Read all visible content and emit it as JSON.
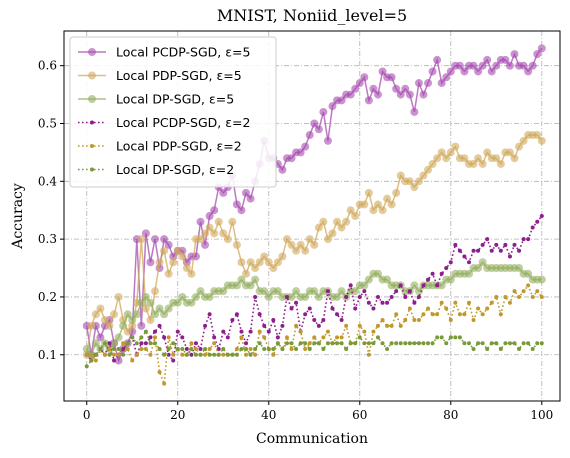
{
  "chart_data": {
    "type": "line",
    "title": "MNIST, Noniid_level=5",
    "xlabel": "Communication",
    "ylabel": "Accuracy",
    "xlim": [
      -5,
      104
    ],
    "ylim": [
      0.02,
      0.66
    ],
    "xticks": [
      0,
      20,
      40,
      60,
      80,
      100
    ],
    "yticks": [
      0.1,
      0.2,
      0.3,
      0.4,
      0.5,
      0.6
    ],
    "xtick_labels": [
      "0",
      "20",
      "40",
      "60",
      "80",
      "100"
    ],
    "ytick_labels": [
      "0.1",
      "0.2",
      "0.3",
      "0.4",
      "0.5",
      "0.6"
    ],
    "grid": true,
    "legend_position": "top-left",
    "series": [
      {
        "name": "Local PCDP-SGD, ε=5",
        "color": "#a64bb0",
        "style": "solid",
        "marker": "circle",
        "values": [
          0.15,
          0.1,
          0.15,
          0.13,
          0.15,
          0.16,
          0.12,
          0.09,
          0.11,
          0.12,
          0.14,
          0.3,
          0.15,
          0.31,
          0.26,
          0.3,
          0.25,
          0.3,
          0.29,
          0.27,
          0.28,
          0.28,
          0.26,
          0.27,
          0.27,
          0.33,
          0.29,
          0.34,
          0.35,
          0.39,
          0.38,
          0.39,
          0.41,
          0.36,
          0.35,
          0.38,
          0.37,
          0.4,
          0.43,
          0.47,
          0.44,
          0.44,
          0.43,
          0.42,
          0.44,
          0.44,
          0.45,
          0.45,
          0.46,
          0.48,
          0.5,
          0.49,
          0.52,
          0.47,
          0.53,
          0.54,
          0.54,
          0.55,
          0.55,
          0.56,
          0.57,
          0.58,
          0.54,
          0.56,
          0.55,
          0.59,
          0.58,
          0.58,
          0.56,
          0.55,
          0.56,
          0.55,
          0.52,
          0.57,
          0.55,
          0.57,
          0.59,
          0.61,
          0.57,
          0.58,
          0.59,
          0.6,
          0.6,
          0.59,
          0.6,
          0.6,
          0.59,
          0.6,
          0.61,
          0.59,
          0.6,
          0.61,
          0.61,
          0.6,
          0.62,
          0.6,
          0.6,
          0.59,
          0.6,
          0.62,
          0.63
        ]
      },
      {
        "name": "Local PDP-SGD, ε=5",
        "color": "#d1a85a",
        "style": "solid",
        "marker": "circle",
        "values": [
          0.1,
          0.15,
          0.17,
          0.18,
          0.16,
          0.15,
          0.17,
          0.2,
          0.16,
          0.14,
          0.15,
          0.19,
          0.3,
          0.18,
          0.16,
          0.21,
          0.26,
          0.28,
          0.24,
          0.26,
          0.28,
          0.27,
          0.25,
          0.24,
          0.3,
          0.3,
          0.31,
          0.32,
          0.31,
          0.33,
          0.31,
          0.3,
          0.33,
          0.29,
          0.26,
          0.24,
          0.26,
          0.25,
          0.26,
          0.27,
          0.26,
          0.25,
          0.26,
          0.27,
          0.3,
          0.29,
          0.28,
          0.29,
          0.28,
          0.3,
          0.29,
          0.32,
          0.33,
          0.3,
          0.31,
          0.33,
          0.32,
          0.33,
          0.35,
          0.34,
          0.36,
          0.36,
          0.38,
          0.35,
          0.36,
          0.35,
          0.37,
          0.36,
          0.38,
          0.41,
          0.4,
          0.4,
          0.39,
          0.4,
          0.41,
          0.42,
          0.43,
          0.44,
          0.45,
          0.44,
          0.45,
          0.46,
          0.44,
          0.44,
          0.43,
          0.43,
          0.44,
          0.43,
          0.45,
          0.44,
          0.44,
          0.43,
          0.45,
          0.45,
          0.44,
          0.46,
          0.47,
          0.48,
          0.48,
          0.48,
          0.47
        ]
      },
      {
        "name": "Local DP-SGD, ε=5",
        "color": "#92ad5e",
        "style": "solid",
        "marker": "circle",
        "values": [
          0.11,
          0.1,
          0.12,
          0.11,
          0.12,
          0.11,
          0.12,
          0.13,
          0.15,
          0.17,
          0.16,
          0.17,
          0.19,
          0.2,
          0.19,
          0.17,
          0.18,
          0.17,
          0.18,
          0.19,
          0.19,
          0.2,
          0.19,
          0.19,
          0.2,
          0.21,
          0.2,
          0.2,
          0.21,
          0.21,
          0.21,
          0.22,
          0.22,
          0.22,
          0.23,
          0.22,
          0.22,
          0.23,
          0.21,
          0.21,
          0.2,
          0.21,
          0.21,
          0.2,
          0.2,
          0.2,
          0.21,
          0.2,
          0.2,
          0.21,
          0.21,
          0.2,
          0.21,
          0.21,
          0.2,
          0.2,
          0.21,
          0.2,
          0.21,
          0.21,
          0.22,
          0.22,
          0.23,
          0.24,
          0.24,
          0.23,
          0.23,
          0.22,
          0.22,
          0.22,
          0.21,
          0.21,
          0.22,
          0.21,
          0.22,
          0.22,
          0.22,
          0.22,
          0.22,
          0.23,
          0.23,
          0.24,
          0.24,
          0.24,
          0.24,
          0.25,
          0.25,
          0.26,
          0.25,
          0.25,
          0.25,
          0.25,
          0.25,
          0.25,
          0.25,
          0.25,
          0.24,
          0.24,
          0.23,
          0.23,
          0.23
        ]
      },
      {
        "name": "Local PCDP-SGD, ε=2",
        "color": "#8e1e8e",
        "style": "dotted",
        "marker": "small-dot",
        "values": [
          0.1,
          0.09,
          0.1,
          0.11,
          0.1,
          0.12,
          0.09,
          0.1,
          0.11,
          0.12,
          0.13,
          0.1,
          0.12,
          0.12,
          0.13,
          0.14,
          0.15,
          0.13,
          0.1,
          0.09,
          0.14,
          0.13,
          0.11,
          0.1,
          0.12,
          0.11,
          0.15,
          0.17,
          0.13,
          0.11,
          0.14,
          0.13,
          0.16,
          0.17,
          0.14,
          0.12,
          0.14,
          0.2,
          0.17,
          0.15,
          0.14,
          0.16,
          0.13,
          0.15,
          0.2,
          0.18,
          0.19,
          0.14,
          0.17,
          0.18,
          0.16,
          0.15,
          0.16,
          0.21,
          0.18,
          0.17,
          0.16,
          0.2,
          0.22,
          0.18,
          0.2,
          0.21,
          0.19,
          0.18,
          0.2,
          0.19,
          0.19,
          0.2,
          0.21,
          0.22,
          0.2,
          0.21,
          0.19,
          0.2,
          0.22,
          0.23,
          0.24,
          0.22,
          0.24,
          0.25,
          0.26,
          0.29,
          0.28,
          0.27,
          0.26,
          0.28,
          0.28,
          0.29,
          0.3,
          0.28,
          0.29,
          0.28,
          0.29,
          0.27,
          0.29,
          0.28,
          0.3,
          0.3,
          0.32,
          0.33,
          0.34
        ]
      },
      {
        "name": "Local PDP-SGD, ε=2",
        "color": "#c0982c",
        "style": "dotted",
        "marker": "small-dot",
        "values": [
          0.1,
          0.1,
          0.09,
          0.11,
          0.1,
          0.11,
          0.1,
          0.1,
          0.12,
          0.11,
          0.09,
          0.1,
          0.11,
          0.11,
          0.1,
          0.13,
          0.07,
          0.05,
          0.13,
          0.1,
          0.11,
          0.1,
          0.1,
          0.12,
          0.11,
          0.1,
          0.1,
          0.11,
          0.12,
          0.1,
          0.1,
          0.1,
          0.1,
          0.11,
          0.13,
          0.1,
          0.11,
          0.1,
          0.14,
          0.13,
          0.11,
          0.1,
          0.12,
          0.11,
          0.13,
          0.11,
          0.15,
          0.14,
          0.11,
          0.12,
          0.13,
          0.12,
          0.13,
          0.14,
          0.12,
          0.13,
          0.13,
          0.15,
          0.12,
          0.12,
          0.15,
          0.14,
          0.1,
          0.14,
          0.15,
          0.16,
          0.15,
          0.15,
          0.17,
          0.15,
          0.16,
          0.18,
          0.16,
          0.16,
          0.17,
          0.18,
          0.17,
          0.17,
          0.19,
          0.18,
          0.16,
          0.19,
          0.17,
          0.17,
          0.19,
          0.16,
          0.18,
          0.17,
          0.18,
          0.19,
          0.2,
          0.17,
          0.2,
          0.19,
          0.21,
          0.2,
          0.21,
          0.22,
          0.2,
          0.21,
          0.2
        ]
      },
      {
        "name": "Local DP-SGD, ε=2",
        "color": "#7a9a3a",
        "style": "dotted",
        "marker": "small-dot",
        "values": [
          0.08,
          0.09,
          0.1,
          0.11,
          0.12,
          0.1,
          0.11,
          0.11,
          0.1,
          0.12,
          0.13,
          0.12,
          0.13,
          0.14,
          0.12,
          0.12,
          0.11,
          0.1,
          0.11,
          0.12,
          0.11,
          0.11,
          0.1,
          0.11,
          0.1,
          0.1,
          0.11,
          0.1,
          0.1,
          0.1,
          0.11,
          0.1,
          0.1,
          0.1,
          0.11,
          0.11,
          0.1,
          0.11,
          0.12,
          0.11,
          0.11,
          0.11,
          0.12,
          0.11,
          0.12,
          0.12,
          0.11,
          0.12,
          0.12,
          0.11,
          0.12,
          0.12,
          0.11,
          0.12,
          0.12,
          0.12,
          0.12,
          0.11,
          0.12,
          0.12,
          0.13,
          0.12,
          0.12,
          0.12,
          0.13,
          0.12,
          0.11,
          0.12,
          0.12,
          0.12,
          0.12,
          0.12,
          0.12,
          0.12,
          0.12,
          0.12,
          0.12,
          0.13,
          0.13,
          0.12,
          0.13,
          0.13,
          0.13,
          0.12,
          0.12,
          0.11,
          0.12,
          0.12,
          0.11,
          0.12,
          0.12,
          0.11,
          0.12,
          0.12,
          0.12,
          0.11,
          0.12,
          0.12,
          0.11,
          0.12,
          0.12
        ]
      }
    ]
  }
}
